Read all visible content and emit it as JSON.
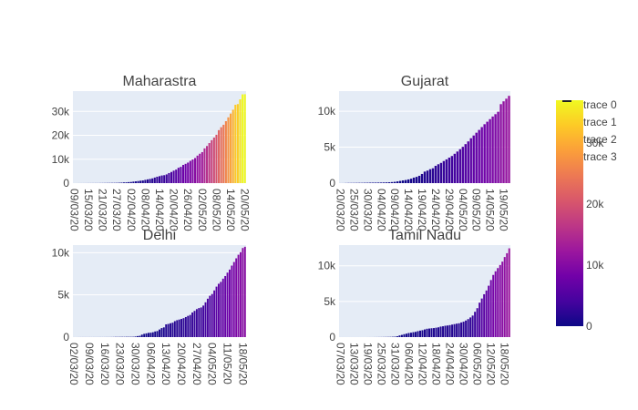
{
  "chart_data": {
    "type": "bar",
    "colorbar": {
      "min": 0,
      "max": 37000,
      "ticks": [
        {
          "label": "0",
          "value": 0
        },
        {
          "label": "10k",
          "value": 10000
        },
        {
          "label": "20k",
          "value": 20000
        },
        {
          "label": "30k",
          "value": 30000
        }
      ],
      "colorscale": [
        "#0d0887",
        "#46039f",
        "#7201a8",
        "#9c179e",
        "#bd3786",
        "#d8576b",
        "#ed7953",
        "#fb9f3a",
        "#fdca26",
        "#f0f921"
      ]
    },
    "legend": [
      "trace 0",
      "trace 1",
      "trace 2",
      "trace 3"
    ],
    "panels": [
      {
        "title": "Maharastra",
        "ylim": [
          0,
          38500
        ],
        "yticks": [
          {
            "label": "0",
            "value": 0
          },
          {
            "label": "10k",
            "value": 10000
          },
          {
            "label": "20k",
            "value": 20000
          },
          {
            "label": "30k",
            "value": 30000
          }
        ],
        "x_tick_labels": [
          "09/03/20",
          "15/03/20",
          "21/03/20",
          "27/03/20",
          "02/04/20",
          "08/04/20",
          "14/04/20",
          "20/04/20",
          "26/04/20",
          "02/05/20",
          "08/05/20",
          "14/05/20",
          "20/05/20"
        ],
        "x_tick_index": [
          0,
          6,
          12,
          18,
          24,
          30,
          36,
          42,
          48,
          54,
          60,
          66,
          72
        ],
        "values": [
          2,
          5,
          11,
          14,
          17,
          19,
          26,
          32,
          33,
          39,
          41,
          49,
          64,
          74,
          89,
          97,
          107,
          122,
          130,
          180,
          220,
          300,
          335,
          423,
          490,
          635,
          748,
          868,
          1018,
          1135,
          1364,
          1574,
          1761,
          1982,
          2334,
          2684,
          2916,
          3202,
          3323,
          3651,
          4203,
          4669,
          5221,
          5652,
          6427,
          6817,
          7628,
          8068,
          8590,
          9318,
          9915,
          10498,
          11506,
          12296,
          12974,
          14541,
          15525,
          16758,
          17974,
          19063,
          20228,
          22171,
          23401,
          24427,
          25922,
          27524,
          29100,
          30706,
          32786,
          33053,
          35058,
          37136,
          37200
        ]
      },
      {
        "title": "Gujarat",
        "ylim": [
          0,
          12800
        ],
        "yticks": [
          {
            "label": "0",
            "value": 0
          },
          {
            "label": "5k",
            "value": 5000
          },
          {
            "label": "10k",
            "value": 10000
          }
        ],
        "x_tick_labels": [
          "20/03/20",
          "25/03/20",
          "30/03/20",
          "04/04/20",
          "09/04/20",
          "14/04/20",
          "19/04/20",
          "24/04/20",
          "29/04/20",
          "04/05/20",
          "09/05/20",
          "14/05/20",
          "19/05/20"
        ],
        "x_tick_index": [
          0,
          5,
          10,
          15,
          20,
          25,
          30,
          35,
          40,
          45,
          50,
          55,
          60
        ],
        "values": [
          5,
          7,
          18,
          29,
          30,
          33,
          38,
          43,
          44,
          55,
          58,
          69,
          73,
          74,
          82,
          87,
          95,
          105,
          122,
          146,
          179,
          241,
          308,
          378,
          432,
          516,
          617,
          766,
          871,
          1021,
          1272,
          1604,
          1743,
          1939,
          2066,
          2407,
          2624,
          2815,
          3071,
          3301,
          3548,
          3774,
          4082,
          4395,
          4721,
          5054,
          5428,
          5804,
          6245,
          6625,
          7013,
          7403,
          7797,
          8195,
          8542,
          8903,
          9268,
          9592,
          9931,
          10988,
          11380,
          11746,
          12141
        ]
      },
      {
        "title": "Delhi",
        "ylim": [
          0,
          10900
        ],
        "yticks": [
          {
            "label": "0",
            "value": 0
          },
          {
            "label": "5k",
            "value": 5000
          },
          {
            "label": "10k",
            "value": 10000
          }
        ],
        "x_tick_labels": [
          "02/03/20",
          "09/03/20",
          "16/03/20",
          "23/03/20",
          "30/03/20",
          "06/04/20",
          "13/04/20",
          "20/04/20",
          "27/04/20",
          "04/05/20",
          "11/05/20",
          "18/05/20"
        ],
        "x_tick_index": [
          0,
          7,
          14,
          21,
          28,
          35,
          42,
          49,
          56,
          63,
          70,
          77
        ],
        "values": [
          1,
          1,
          3,
          5,
          5,
          5,
          5,
          5,
          5,
          6,
          6,
          7,
          7,
          7,
          7,
          10,
          10,
          12,
          17,
          26,
          26,
          30,
          31,
          31,
          36,
          39,
          39,
          40,
          72,
          120,
          152,
          293,
          386,
          445,
          503,
          523,
          576,
          669,
          720,
          903,
          1069,
          1154,
          1510,
          1561,
          1640,
          1707,
          1893,
          2003,
          2081,
          2156,
          2248,
          2376,
          2514,
          2625,
          2918,
          3108,
          3314,
          3439,
          3515,
          3738,
          4122,
          4549,
          4898,
          5104,
          5532,
          5980,
          6318,
          6542,
          6923,
          7233,
          7639,
          7998,
          8470,
          8895,
          9333,
          9755,
          10054,
          10554,
          10700
        ]
      },
      {
        "title": "Tamil Nadu",
        "ylim": [
          0,
          12900
        ],
        "yticks": [
          {
            "label": "0",
            "value": 0
          },
          {
            "label": "5k",
            "value": 5000
          },
          {
            "label": "10k",
            "value": 10000
          }
        ],
        "x_tick_labels": [
          "07/03/20",
          "13/03/20",
          "19/03/20",
          "25/03/20",
          "31/03/20",
          "06/04/20",
          "12/04/20",
          "18/04/20",
          "24/04/20",
          "30/04/20",
          "06/05/20",
          "12/05/20",
          "18/05/20"
        ],
        "x_tick_index": [
          0,
          6,
          12,
          18,
          24,
          30,
          36,
          42,
          48,
          54,
          60,
          66,
          72
        ],
        "values": [
          1,
          1,
          1,
          1,
          1,
          1,
          1,
          1,
          1,
          1,
          1,
          1,
          2,
          3,
          3,
          6,
          9,
          12,
          15,
          18,
          26,
          29,
          38,
          50,
          67,
          124,
          234,
          309,
          411,
          485,
          571,
          621,
          690,
          738,
          834,
          911,
          969,
          1075,
          1173,
          1204,
          1242,
          1267,
          1323,
          1372,
          1477,
          1520,
          1596,
          1629,
          1683,
          1755,
          1821,
          1885,
          1937,
          2058,
          2162,
          2323,
          2526,
          2757,
          3023,
          3550,
          4058,
          4829,
          5409,
          6009,
          6535,
          7204,
          8002,
          8718,
          9227,
          9674,
          10108,
          10585,
          11224,
          11760,
          12448
        ]
      }
    ]
  }
}
